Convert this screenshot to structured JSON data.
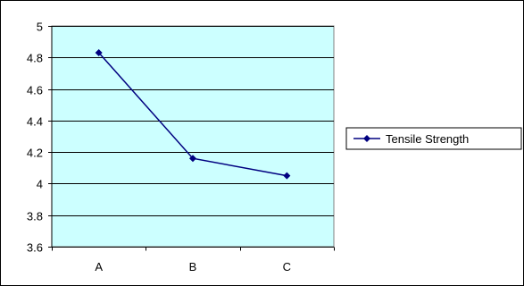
{
  "chart_data": {
    "type": "line",
    "categories": [
      "A",
      "B",
      "C"
    ],
    "series": [
      {
        "name": "Tensile Strength",
        "values": [
          4.83,
          4.16,
          4.05
        ],
        "color": "#000080"
      }
    ],
    "ylim": [
      3.6,
      5.0
    ],
    "yticks": [
      "3.6",
      "3.8",
      "4",
      "4.2",
      "4.4",
      "4.6",
      "4.8",
      "5"
    ],
    "plot_background": "#ccffff",
    "grid": true,
    "legend_position": "right"
  }
}
